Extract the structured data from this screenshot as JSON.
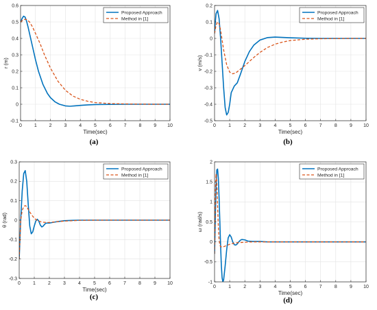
{
  "chart_data": [
    {
      "type": "line",
      "caption": "(a)",
      "xlabel": "Time(sec)",
      "ylabel": "r (m)",
      "xlim": [
        0,
        10
      ],
      "ylim": [
        -0.1,
        0.6
      ],
      "xticks": [
        0,
        1,
        2,
        3,
        4,
        5,
        6,
        7,
        8,
        9,
        10
      ],
      "yticks": [
        -0.1,
        0,
        0.1,
        0.2,
        0.3,
        0.4,
        0.5,
        0.6
      ],
      "grid": true,
      "legend": "top-right",
      "series": [
        {
          "name": "Proposed Approach",
          "color": "#0072BD",
          "style": "solid",
          "x": [
            0,
            0.1,
            0.2,
            0.3,
            0.4,
            0.5,
            0.6,
            0.8,
            1.0,
            1.2,
            1.5,
            1.8,
            2.0,
            2.3,
            2.6,
            3.0,
            3.3,
            3.6,
            4.0,
            4.5,
            5.0,
            6.0,
            7.0,
            8.0,
            9.0,
            10.0
          ],
          "y": [
            0.5,
            0.52,
            0.535,
            0.53,
            0.505,
            0.47,
            0.43,
            0.35,
            0.27,
            0.2,
            0.12,
            0.065,
            0.04,
            0.015,
            0.0,
            -0.01,
            -0.012,
            -0.01,
            -0.007,
            -0.004,
            -0.002,
            -0.001,
            0,
            0,
            0,
            0
          ]
        },
        {
          "name": "Method in [1]",
          "color": "#D95319",
          "style": "dashed",
          "x": [
            0,
            0.2,
            0.4,
            0.6,
            0.8,
            1.0,
            1.3,
            1.6,
            2.0,
            2.5,
            3.0,
            3.5,
            4.0,
            4.5,
            5.0,
            6.0,
            7.0,
            8.0,
            9.0,
            10.0
          ],
          "y": [
            0.5,
            0.515,
            0.515,
            0.5,
            0.47,
            0.43,
            0.37,
            0.3,
            0.22,
            0.14,
            0.085,
            0.05,
            0.03,
            0.018,
            0.01,
            0.004,
            0.002,
            0.001,
            0,
            0
          ]
        }
      ]
    },
    {
      "type": "line",
      "caption": "(b)",
      "xlabel": "Time(sec)",
      "ylabel": "v (m/s)",
      "xlim": [
        0,
        10
      ],
      "ylim": [
        -0.5,
        0.2
      ],
      "xticks": [
        0,
        1,
        2,
        3,
        4,
        5,
        6,
        7,
        8,
        9,
        10
      ],
      "yticks": [
        -0.5,
        -0.4,
        -0.3,
        -0.2,
        -0.1,
        0,
        0.1,
        0.2
      ],
      "grid": true,
      "legend": "top-right",
      "series": [
        {
          "name": "Proposed Approach",
          "color": "#0072BD",
          "style": "solid",
          "x": [
            0,
            0.05,
            0.1,
            0.2,
            0.3,
            0.4,
            0.5,
            0.6,
            0.7,
            0.8,
            0.9,
            1.0,
            1.1,
            1.3,
            1.5,
            1.7,
            2.0,
            2.3,
            2.6,
            3.0,
            3.5,
            4.0,
            4.5,
            5.0,
            6.0,
            7.0,
            8.0,
            9.0,
            10.0
          ],
          "y": [
            0.03,
            0.1,
            0.15,
            0.17,
            0.12,
            0.0,
            -0.15,
            -0.3,
            -0.42,
            -0.465,
            -0.45,
            -0.4,
            -0.33,
            -0.29,
            -0.27,
            -0.22,
            -0.14,
            -0.08,
            -0.04,
            -0.01,
            0.005,
            0.008,
            0.006,
            0.004,
            0.001,
            0,
            0,
            0,
            0
          ]
        },
        {
          "name": "Method in [1]",
          "color": "#D95319",
          "style": "dashed",
          "x": [
            0,
            0.1,
            0.2,
            0.3,
            0.4,
            0.5,
            0.6,
            0.8,
            1.0,
            1.2,
            1.4,
            1.6,
            1.8,
            2.0,
            2.3,
            2.6,
            3.0,
            3.5,
            4.0,
            4.5,
            5.0,
            6.0,
            7.0,
            8.0,
            9.0,
            10.0
          ],
          "y": [
            0.03,
            0.08,
            0.1,
            0.09,
            0.05,
            -0.01,
            -0.07,
            -0.16,
            -0.205,
            -0.215,
            -0.21,
            -0.195,
            -0.18,
            -0.165,
            -0.14,
            -0.115,
            -0.085,
            -0.055,
            -0.035,
            -0.022,
            -0.013,
            -0.005,
            -0.002,
            -0.001,
            0,
            0
          ]
        }
      ]
    },
    {
      "type": "line",
      "caption": "(c)",
      "xlabel": "Time(sec)",
      "ylabel": "θ (rad)",
      "xlim": [
        0,
        10
      ],
      "ylim": [
        -0.3,
        0.3
      ],
      "xticks": [
        0,
        1,
        2,
        3,
        4,
        5,
        6,
        7,
        8,
        9,
        10
      ],
      "yticks": [
        -0.3,
        -0.2,
        -0.1,
        0,
        0.1,
        0.2,
        0.3
      ],
      "grid": true,
      "legend": "top-right",
      "series": [
        {
          "name": "Proposed Approach",
          "color": "#0072BD",
          "style": "solid",
          "x": [
            0,
            0.05,
            0.1,
            0.2,
            0.3,
            0.4,
            0.5,
            0.6,
            0.7,
            0.8,
            0.9,
            1.0,
            1.1,
            1.2,
            1.3,
            1.4,
            1.5,
            1.6,
            1.7,
            1.8,
            2.0,
            2.2,
            2.5,
            3.0,
            3.5,
            4.0,
            5.0,
            6.0,
            7.0,
            8.0,
            9.0,
            10.0
          ],
          "y": [
            -0.2,
            -0.1,
            0.0,
            0.15,
            0.24,
            0.255,
            0.2,
            0.08,
            -0.03,
            -0.07,
            -0.06,
            -0.03,
            -0.005,
            0.005,
            -0.005,
            -0.025,
            -0.035,
            -0.03,
            -0.02,
            -0.015,
            -0.015,
            -0.012,
            -0.008,
            -0.003,
            -0.001,
            0,
            0,
            0,
            0,
            0,
            0,
            0
          ]
        },
        {
          "name": "Method in [1]",
          "color": "#D95319",
          "style": "dashed",
          "x": [
            0,
            0.05,
            0.1,
            0.2,
            0.3,
            0.4,
            0.5,
            0.6,
            0.8,
            1.0,
            1.2,
            1.5,
            1.8,
            2.0,
            2.5,
            3.0,
            3.5,
            4.0,
            5.0,
            6.0,
            7.0,
            8.0,
            9.0,
            10.0
          ],
          "y": [
            -0.2,
            -0.1,
            0.0,
            0.05,
            0.07,
            0.075,
            0.07,
            0.055,
            0.03,
            0.01,
            -0.002,
            -0.01,
            -0.012,
            -0.012,
            -0.008,
            -0.005,
            -0.003,
            -0.001,
            0,
            0,
            0,
            0,
            0,
            0
          ]
        }
      ]
    },
    {
      "type": "line",
      "caption": "(d)",
      "xlabel": "Time(sec)",
      "ylabel": "ω (rad/s)",
      "xlim": [
        0,
        10
      ],
      "ylim": [
        -1,
        2
      ],
      "xticks": [
        0,
        1,
        2,
        3,
        4,
        5,
        6,
        7,
        8,
        9,
        10
      ],
      "yticks": [
        -1,
        -0.5,
        0,
        0.5,
        1,
        1.5,
        2
      ],
      "grid": true,
      "legend": "top-right",
      "series": [
        {
          "name": "Proposed Approach",
          "color": "#0072BD",
          "style": "solid",
          "x": [
            0,
            0.05,
            0.1,
            0.15,
            0.2,
            0.25,
            0.3,
            0.35,
            0.4,
            0.45,
            0.5,
            0.55,
            0.6,
            0.7,
            0.8,
            0.9,
            1.0,
            1.1,
            1.2,
            1.3,
            1.4,
            1.5,
            1.6,
            1.7,
            1.8,
            2.0,
            2.2,
            2.5,
            3.0,
            3.5,
            4.0,
            5.0,
            6.0,
            7.0,
            8.0,
            9.0,
            10.0
          ],
          "y": [
            -0.3,
            0.6,
            1.4,
            1.8,
            1.82,
            1.6,
            1.1,
            0.5,
            -0.1,
            -0.6,
            -0.9,
            -1.0,
            -0.95,
            -0.6,
            -0.2,
            0.1,
            0.18,
            0.12,
            0.0,
            -0.07,
            -0.08,
            -0.05,
            0.0,
            0.04,
            0.06,
            0.05,
            0.02,
            0.01,
            0.01,
            0.0,
            0,
            0,
            0,
            0,
            0,
            0,
            0
          ]
        },
        {
          "name": "Method in [1]",
          "color": "#D95319",
          "style": "dashed",
          "x": [
            0,
            0.03,
            0.06,
            0.1,
            0.15,
            0.2,
            0.25,
            0.3,
            0.35,
            0.4,
            0.5,
            0.6,
            0.8,
            1.0,
            1.2,
            1.5,
            2.0,
            2.5,
            3.0,
            4.0,
            5.0,
            6.0,
            7.0,
            8.0,
            9.0,
            10.0
          ],
          "y": [
            -0.3,
            0.5,
            1.3,
            1.7,
            1.5,
            0.9,
            0.4,
            0.05,
            -0.08,
            -0.12,
            -0.13,
            -0.12,
            -0.09,
            -0.06,
            -0.04,
            -0.02,
            -0.01,
            0,
            0,
            0,
            0,
            0,
            0,
            0,
            0,
            0
          ]
        }
      ]
    }
  ]
}
